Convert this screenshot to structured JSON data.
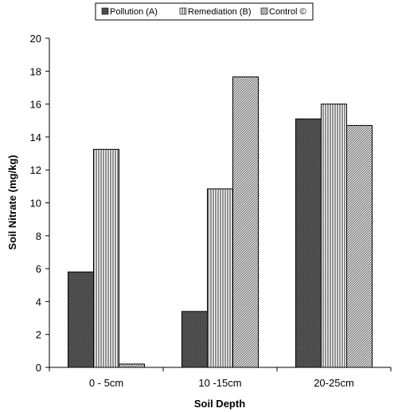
{
  "chart_data": {
    "type": "bar",
    "title": "",
    "xlabel": "Soil Depth",
    "ylabel": "Soil Nitrate (mg/kg)",
    "categories": [
      "0 - 5cm",
      "10 -15cm",
      "20-25cm"
    ],
    "series": [
      {
        "name": "Pollution  (A)",
        "values": [
          5.8,
          3.4,
          15.1
        ],
        "pattern": "dark-crosshatch"
      },
      {
        "name": "Remediation  (B)",
        "values": [
          13.25,
          10.85,
          16.0
        ],
        "pattern": "vertical-lines"
      },
      {
        "name": "Control ©",
        "values": [
          0.2,
          17.65,
          14.7
        ],
        "pattern": "diagonal-lines"
      }
    ],
    "ylim": [
      0,
      20
    ],
    "yticks": [
      0,
      2,
      4,
      6,
      8,
      10,
      12,
      14,
      16,
      18,
      20
    ],
    "grid": false,
    "legend_position": "top-center"
  }
}
